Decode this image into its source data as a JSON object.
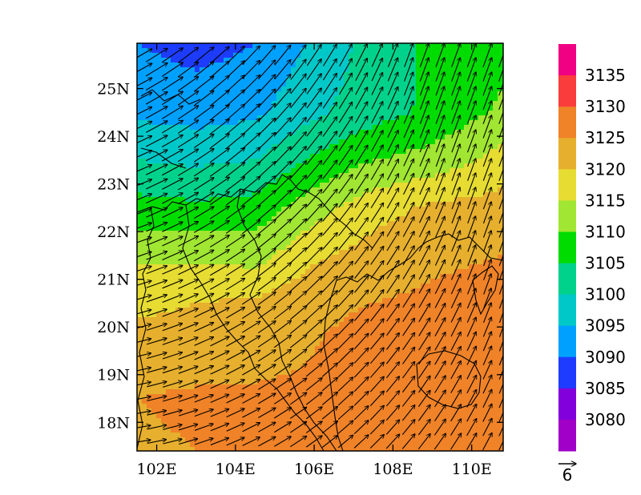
{
  "chart_data": {
    "type": "heatmap",
    "title": "",
    "xlabel": "",
    "ylabel": "",
    "x_ticks": [
      "102E",
      "104E",
      "106E",
      "108E",
      "110E"
    ],
    "x_tick_values": [
      102,
      104,
      106,
      108,
      110
    ],
    "y_ticks": [
      "18N",
      "19N",
      "20N",
      "21N",
      "22N",
      "23N",
      "24N",
      "25N"
    ],
    "y_tick_values": [
      18,
      19,
      20,
      21,
      22,
      23,
      24,
      25
    ],
    "xlim": [
      101.5,
      110.8
    ],
    "ylim": [
      17.4,
      25.95
    ],
    "colorbar": {
      "labels": [
        "3135",
        "3130",
        "3125",
        "3120",
        "3115",
        "3110",
        "3105",
        "3100",
        "3095",
        "3090",
        "3085",
        "3080"
      ],
      "levels": [
        3080,
        3085,
        3090,
        3095,
        3100,
        3105,
        3110,
        3115,
        3120,
        3125,
        3130,
        3135
      ],
      "colors": [
        "#a000c8",
        "#8200dc",
        "#1e3cff",
        "#00a0ff",
        "#00c8c8",
        "#00d28c",
        "#00dc00",
        "#a0e632",
        "#e6dc32",
        "#e6af2d",
        "#f08228",
        "#fa3c3c",
        "#f00082"
      ]
    },
    "vector_reference": {
      "label": "6",
      "magnitude": 6
    },
    "field": {
      "lons": [
        101.5,
        103,
        104.5,
        106,
        107.5,
        109,
        110.8
      ],
      "lats": [
        17.4,
        18.5,
        19.5,
        20.5,
        21.5,
        22.5,
        23.5,
        24.5,
        25.95
      ],
      "values": [
        [
          3124,
          3125,
          3125,
          3126,
          3127,
          3128,
          3129
        ],
        [
          3125,
          3126,
          3126,
          3126,
          3127,
          3129,
          3130
        ],
        [
          3122,
          3122,
          3123,
          3125,
          3127,
          3128,
          3129
        ],
        [
          3119,
          3120,
          3121,
          3124,
          3125,
          3126,
          3127
        ],
        [
          3114,
          3114,
          3113,
          3119,
          3122,
          3124,
          3125
        ],
        [
          3107,
          3106,
          3107,
          3113,
          3118,
          3121,
          3122
        ],
        [
          3100,
          3099,
          3100,
          3106,
          3110,
          3112,
          3117
        ],
        [
          3094,
          3093,
          3094,
          3099,
          3103,
          3106,
          3111
        ],
        [
          3090,
          3088,
          3090,
          3096,
          3102,
          3106,
          3108
        ]
      ]
    },
    "wind": {
      "lons": [
        101.6,
        102.0,
        102.4,
        102.8,
        103.2,
        103.6,
        104.0,
        104.4,
        104.8,
        105.2,
        105.6,
        106.0,
        106.4,
        106.8,
        107.2,
        107.6,
        108.0,
        108.4,
        108.8,
        109.2,
        109.6,
        110.0,
        110.4,
        110.8
      ],
      "lats": [
        17.6,
        17.9,
        18.2,
        18.5,
        18.8,
        19.1,
        19.4,
        19.7,
        20.0,
        20.3,
        20.6,
        20.9,
        21.2,
        21.5,
        21.8,
        22.1,
        22.4,
        22.7,
        23.0,
        23.3,
        23.6,
        23.9,
        24.2,
        24.5,
        24.8,
        25.1,
        25.4,
        25.7
      ]
    },
    "coastline_note": "black political boundary lines"
  }
}
